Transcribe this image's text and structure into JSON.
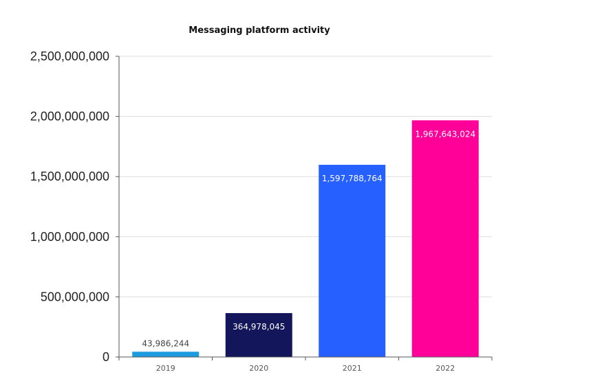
{
  "chart_data": {
    "type": "bar",
    "title": "Messaging platform activity",
    "xlabel": "",
    "ylabel": "",
    "categories": [
      "2019",
      "2020",
      "2021",
      "2022"
    ],
    "values": [
      43986244,
      364978045,
      1597788764,
      1967643024
    ],
    "value_labels": [
      "43,986,244",
      "364,978,045",
      "1,597,788,764",
      "1,967,643,024"
    ],
    "bar_colors": [
      "#1e9be0",
      "#13165a",
      "#2660ff",
      "#ff0099"
    ],
    "ylim": [
      0,
      2500000000
    ],
    "yticks": [
      0,
      500000000,
      1000000000,
      1500000000,
      2000000000,
      2500000000
    ],
    "ytick_labels": [
      "0",
      "500,000,000",
      "1,000,000,000",
      "1,500,000,000",
      "2,000,000,000",
      "2,500,000,000"
    ],
    "grid": true,
    "legend": "none"
  }
}
